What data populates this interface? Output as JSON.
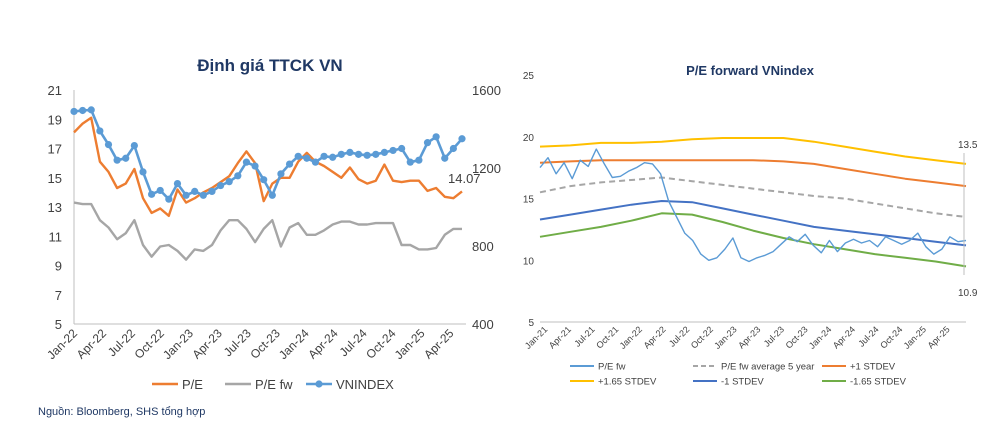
{
  "source_note": "Nguồn: Bloomberg, SHS tổng hợp",
  "colors": {
    "pe": "#ed7d31",
    "pe_fw": "#a6a6a6",
    "vnindex": "#5b9bd5",
    "pe_fw_right": "#5b9bd5",
    "avg5y": "#a6a6a6",
    "plus1": "#ed7d31",
    "plus165": "#ffc000",
    "minus1": "#4472c4",
    "minus165": "#70ad47"
  },
  "chart_data": [
    {
      "type": "line",
      "title": "Định giá TTCK VN",
      "x_labels": [
        "Jan-22",
        "Apr-22",
        "Jul-22",
        "Oct-22",
        "Jan-23",
        "Apr-23",
        "Jul-23",
        "Oct-23",
        "Jan-24",
        "Apr-24",
        "Jul-24",
        "Oct-24",
        "Jan-25",
        "Apr-25"
      ],
      "y_left": {
        "min": 5,
        "max": 21,
        "ticks": [
          "21",
          "19",
          "17",
          "15",
          "13",
          "11",
          "9",
          "7",
          "5"
        ]
      },
      "y_right": {
        "min": 400,
        "max": 1600,
        "ticks": [
          "1600",
          "1200",
          "800",
          "400"
        ]
      },
      "annotation": "14.07",
      "series": [
        {
          "name": "P/E",
          "axis": "left",
          "values": [
            18.1,
            18.7,
            19.1,
            16.1,
            15.4,
            14.3,
            14.6,
            15.6,
            13.6,
            12.6,
            12.9,
            12.4,
            14.2,
            13.3,
            13.6,
            14.0,
            14.3,
            14.7,
            15.1,
            16.0,
            16.8,
            16.0,
            13.4,
            14.6,
            15.0,
            15.0,
            16.1,
            16.7,
            16.1,
            15.8,
            15.4,
            15.0,
            15.7,
            14.9,
            14.6,
            14.8,
            15.9,
            14.8,
            14.7,
            14.8,
            14.8,
            14.1,
            14.3,
            13.7,
            13.6,
            14.07
          ]
        },
        {
          "name": "P/E fw",
          "axis": "left",
          "values": [
            13.3,
            13.2,
            13.2,
            12.1,
            11.6,
            10.8,
            11.2,
            12.1,
            10.4,
            9.6,
            10.3,
            10.4,
            10.0,
            9.4,
            10.1,
            10.0,
            10.4,
            11.4,
            12.1,
            12.1,
            11.5,
            10.6,
            11.5,
            12.1,
            10.3,
            11.6,
            11.9,
            11.1,
            11.1,
            11.4,
            11.8,
            12.0,
            12.0,
            11.8,
            11.8,
            11.9,
            11.9,
            11.9,
            10.4,
            10.4,
            10.1,
            10.1,
            10.2,
            11.1,
            11.5,
            11.5
          ]
        },
        {
          "name": "VNINDEX",
          "axis": "right",
          "values": [
            1490,
            1495,
            1498,
            1390,
            1320,
            1240,
            1250,
            1315,
            1180,
            1065,
            1085,
            1040,
            1120,
            1060,
            1080,
            1060,
            1080,
            1110,
            1130,
            1160,
            1230,
            1210,
            1140,
            1060,
            1170,
            1220,
            1260,
            1250,
            1230,
            1260,
            1255,
            1270,
            1280,
            1270,
            1265,
            1270,
            1280,
            1290,
            1300,
            1230,
            1240,
            1330,
            1360,
            1250,
            1300,
            1350
          ]
        }
      ]
    },
    {
      "type": "line",
      "title": "P/E forward VNindex",
      "x_labels": [
        "Jan-21",
        "Apr-21",
        "Jul-21",
        "Oct-21",
        "Jan-22",
        "Apr-22",
        "Jul-22",
        "Oct-22",
        "Jan-23",
        "Apr-23",
        "Jul-23",
        "Oct-23",
        "Jan-24",
        "Apr-24",
        "Jul-24",
        "Oct-24",
        "Jan-25",
        "Apr-25"
      ],
      "y": {
        "min": 5,
        "max": 25,
        "ticks": [
          "25",
          "20",
          "15",
          "10",
          "5"
        ]
      },
      "annotations": [
        "13.5",
        "10.9"
      ],
      "series": [
        {
          "name": "P/E fw",
          "values": [
            17.5,
            18.3,
            17.0,
            17.9,
            16.6,
            18.1,
            17.6,
            19.0,
            17.8,
            16.7,
            16.8,
            17.2,
            17.5,
            17.9,
            17.8,
            17.0,
            14.8,
            13.5,
            12.2,
            11.6,
            10.5,
            10.0,
            10.2,
            10.9,
            11.8,
            10.2,
            9.9,
            10.2,
            10.4,
            10.7,
            11.3,
            11.9,
            11.5,
            12.1,
            11.2,
            10.6,
            11.6,
            10.7,
            11.4,
            11.7,
            11.4,
            11.6,
            11.1,
            11.9,
            11.6,
            11.3,
            11.6,
            12.2,
            11.1,
            10.5,
            10.9,
            11.9,
            11.5,
            11.6
          ]
        },
        {
          "name": "P/E fw average 5 year",
          "values": [
            15.5,
            16.0,
            16.3,
            16.5,
            16.7,
            16.4,
            16.1,
            15.8,
            15.5,
            15.2,
            15.0,
            14.6,
            14.2,
            13.8,
            13.5
          ]
        },
        {
          "name": "+1 STDEV",
          "values": [
            17.9,
            18.0,
            18.1,
            18.1,
            18.1,
            18.1,
            18.1,
            18.1,
            18.0,
            17.8,
            17.4,
            17.0,
            16.6,
            16.3,
            16.0
          ]
        },
        {
          "name": "+1.65 STDEV",
          "values": [
            19.2,
            19.3,
            19.5,
            19.5,
            19.6,
            19.8,
            19.9,
            19.9,
            19.9,
            19.6,
            19.2,
            18.8,
            18.4,
            18.1,
            17.8
          ]
        },
        {
          "name": "-1 STDEV",
          "values": [
            13.3,
            13.7,
            14.1,
            14.5,
            14.8,
            14.7,
            14.2,
            13.7,
            13.2,
            12.7,
            12.4,
            12.1,
            11.8,
            11.5,
            11.2
          ]
        },
        {
          "name": "-1.65 STDEV",
          "values": [
            11.9,
            12.3,
            12.7,
            13.2,
            13.8,
            13.7,
            13.1,
            12.4,
            11.8,
            11.3,
            10.9,
            10.5,
            10.2,
            9.9,
            9.5
          ]
        }
      ]
    }
  ]
}
